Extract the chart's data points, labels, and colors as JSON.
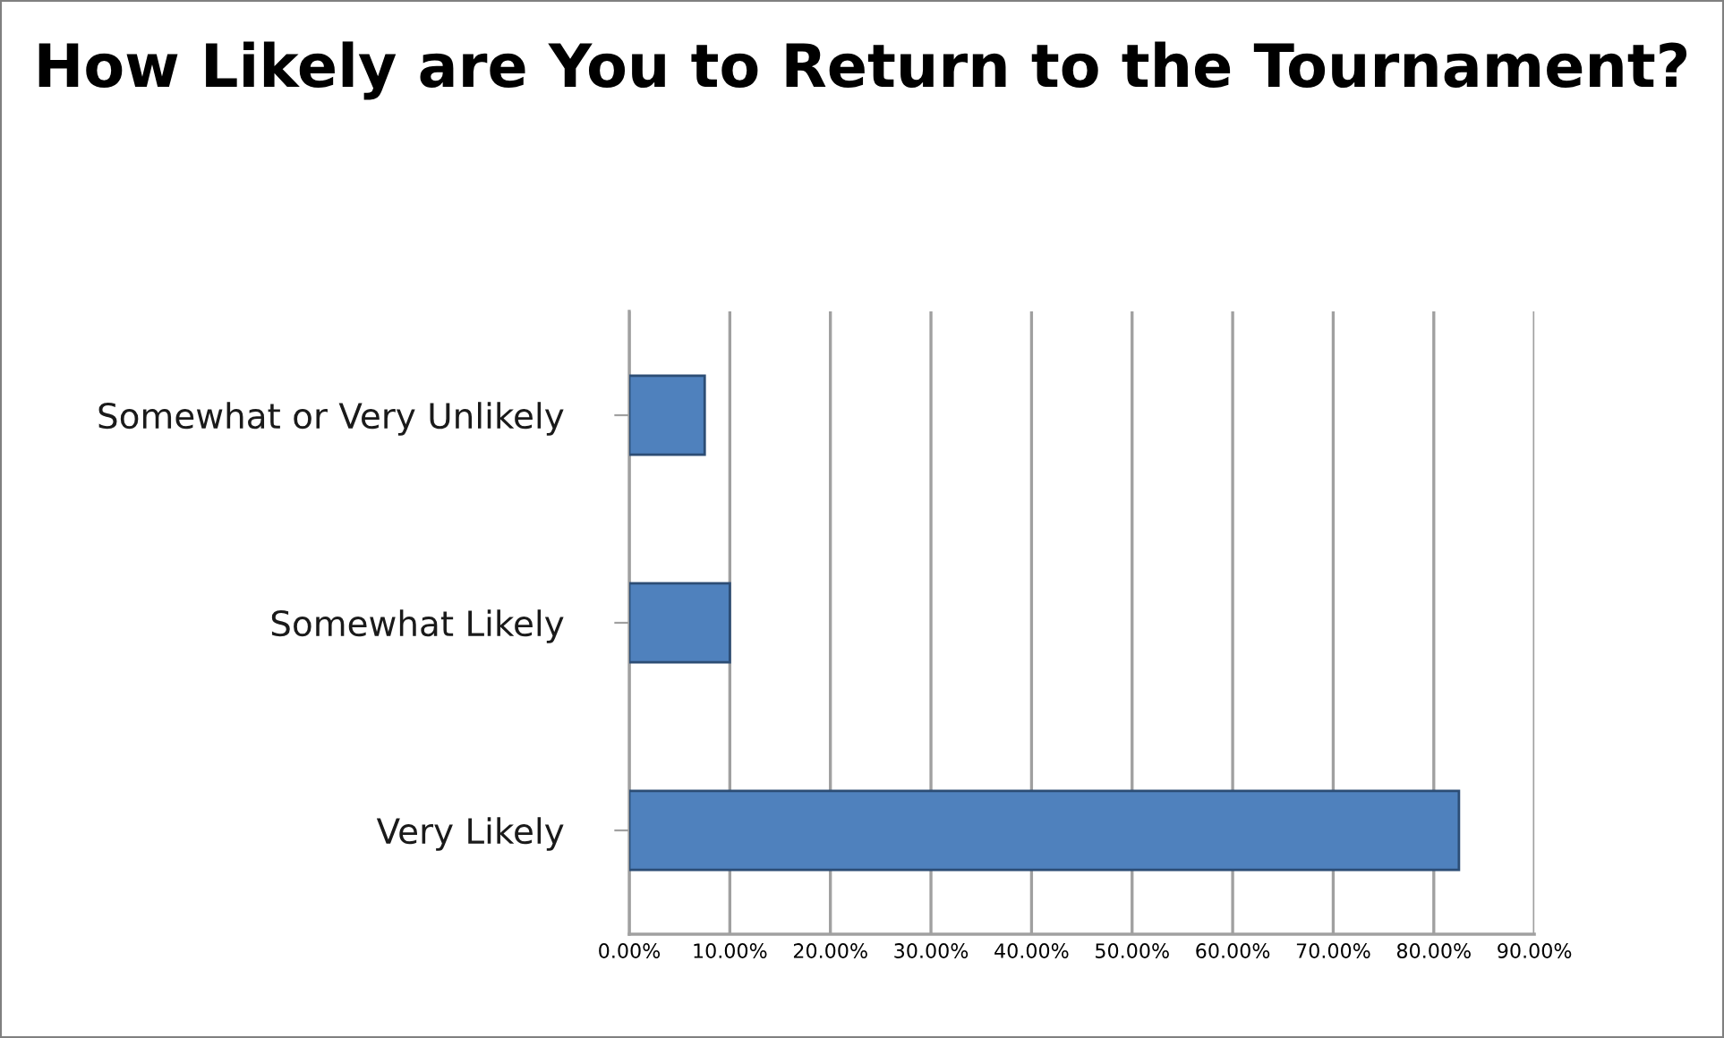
{
  "chart_data": {
    "type": "bar",
    "orientation": "horizontal",
    "title": "How Likely are You to Return to the Tournament?",
    "categories": [
      "Somewhat or Very Unlikely",
      "Somewhat Likely",
      "Very Likely"
    ],
    "values": [
      7.5,
      10,
      82.5
    ],
    "color": "#4f81bd",
    "xlim": [
      0,
      90
    ],
    "xticks": [
      {
        "value": 0,
        "label": "0.00%"
      },
      {
        "value": 10,
        "label": "10.00%"
      },
      {
        "value": 20,
        "label": "20.00%"
      },
      {
        "value": 30,
        "label": "30.00%"
      },
      {
        "value": 40,
        "label": "40.00%"
      },
      {
        "value": 50,
        "label": "50.00%"
      },
      {
        "value": 60,
        "label": "60.00%"
      },
      {
        "value": 70,
        "label": "70.00%"
      },
      {
        "value": 80,
        "label": "80.00%"
      },
      {
        "value": 90,
        "label": "90.00%"
      }
    ],
    "grid": "x",
    "legend": false
  }
}
